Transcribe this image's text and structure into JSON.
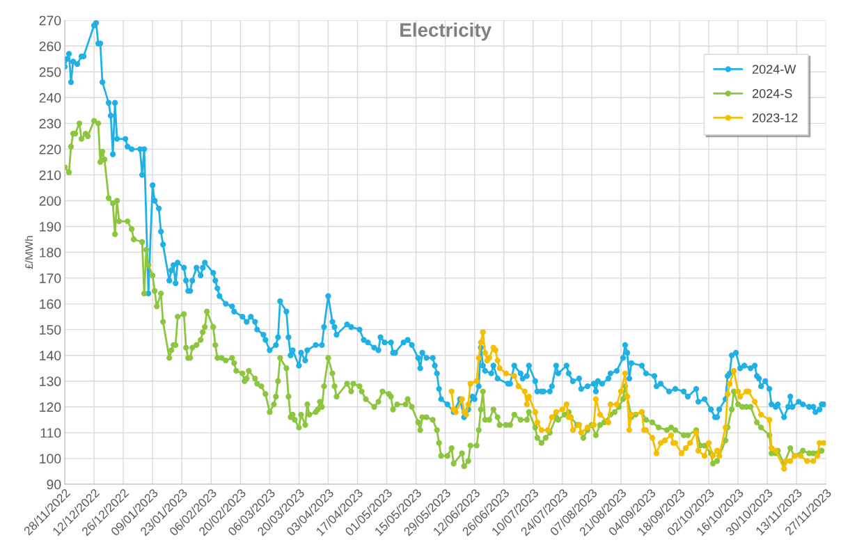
{
  "chart_data": {
    "type": "line",
    "title": "Electricity",
    "ylabel": "£/MWh",
    "xlim": [
      "2022-11-28",
      "2023-11-27"
    ],
    "ylim": [
      90,
      270
    ],
    "yticks": [
      90,
      100,
      110,
      120,
      130,
      140,
      150,
      160,
      170,
      180,
      190,
      200,
      210,
      220,
      230,
      240,
      250,
      260,
      270
    ],
    "xticks": [
      {
        "value": "2022-11-28",
        "label": "28/11/2022"
      },
      {
        "value": "2022-12-12",
        "label": "12/12/2022"
      },
      {
        "value": "2022-12-26",
        "label": "26/12/2022"
      },
      {
        "value": "2023-01-09",
        "label": "09/01/2023"
      },
      {
        "value": "2023-01-23",
        "label": "23/01/2023"
      },
      {
        "value": "2023-02-06",
        "label": "06/02/2023"
      },
      {
        "value": "2023-02-20",
        "label": "20/02/2023"
      },
      {
        "value": "2023-03-06",
        "label": "06/03/2023"
      },
      {
        "value": "2023-03-20",
        "label": "20/03/2023"
      },
      {
        "value": "2023-04-03",
        "label": "03/04/2023"
      },
      {
        "value": "2023-04-17",
        "label": "17/04/2023"
      },
      {
        "value": "2023-05-01",
        "label": "01/05/2023"
      },
      {
        "value": "2023-05-15",
        "label": "15/05/2023"
      },
      {
        "value": "2023-05-29",
        "label": "29/05/2023"
      },
      {
        "value": "2023-06-12",
        "label": "12/06/2023"
      },
      {
        "value": "2023-06-26",
        "label": "26/06/2023"
      },
      {
        "value": "2023-07-10",
        "label": "10/07/2023"
      },
      {
        "value": "2023-07-24",
        "label": "24/07/2023"
      },
      {
        "value": "2023-08-07",
        "label": "07/08/2023"
      },
      {
        "value": "2023-08-21",
        "label": "21/08/2023"
      },
      {
        "value": "2023-09-04",
        "label": "04/09/2023"
      },
      {
        "value": "2023-09-18",
        "label": "18/09/2023"
      },
      {
        "value": "2023-10-02",
        "label": "02/10/2023"
      },
      {
        "value": "2023-10-16",
        "label": "16/10/2023"
      },
      {
        "value": "2023-10-30",
        "label": "30/10/2023"
      },
      {
        "value": "2023-11-13",
        "label": "13/11/2023"
      },
      {
        "value": "2023-11-27",
        "label": "27/11/2023"
      }
    ],
    "grid": true,
    "legend": "top right",
    "marker": "circle",
    "line_style": "solid",
    "series": [
      {
        "name": "2024-W",
        "color": "#1fb1e6",
        "x": [
          "2022-11-28",
          "2022-11-29",
          "2022-11-30",
          "2022-12-01",
          "2022-12-02",
          "2022-12-04",
          "2022-12-06",
          "2022-12-07",
          "2022-12-12",
          "2022-12-13",
          "2022-12-14",
          "2022-12-15",
          "2022-12-16",
          "2022-12-19",
          "2022-12-20",
          "2022-12-21",
          "2022-12-22",
          "2022-12-23",
          "2022-12-27",
          "2022-12-28",
          "2022-12-30",
          "2023-01-03",
          "2023-01-04",
          "2023-01-05",
          "2023-01-07",
          "2023-01-09",
          "2023-01-10",
          "2023-01-12",
          "2023-01-13",
          "2023-01-14",
          "2023-01-17",
          "2023-01-18",
          "2023-01-19",
          "2023-01-20",
          "2023-01-21",
          "2023-01-24",
          "2023-01-25",
          "2023-01-26",
          "2023-01-27",
          "2023-01-28",
          "2023-01-30",
          "2023-02-01",
          "2023-02-02",
          "2023-02-03",
          "2023-02-07",
          "2023-02-08",
          "2023-02-09",
          "2023-02-10",
          "2023-02-13",
          "2023-02-16",
          "2023-02-17",
          "2023-02-21",
          "2023-02-23",
          "2023-02-25",
          "2023-02-27",
          "2023-02-28",
          "2023-03-03",
          "2023-03-04",
          "2023-03-06",
          "2023-03-09",
          "2023-03-10",
          "2023-03-11",
          "2023-03-14",
          "2023-03-15",
          "2023-03-16",
          "2023-03-17",
          "2023-03-20",
          "2023-03-21",
          "2023-03-23",
          "2023-03-24",
          "2023-03-28",
          "2023-03-31",
          "2023-04-01",
          "2023-04-03",
          "2023-04-05",
          "2023-04-06",
          "2023-04-07",
          "2023-04-12",
          "2023-04-14",
          "2023-04-18",
          "2023-04-20",
          "2023-04-22",
          "2023-04-25",
          "2023-04-27",
          "2023-04-28",
          "2023-04-30",
          "2023-05-03",
          "2023-05-04",
          "2023-05-05",
          "2023-05-09",
          "2023-05-11",
          "2023-05-13",
          "2023-05-16",
          "2023-05-17",
          "2023-05-18",
          "2023-05-20",
          "2023-05-23",
          "2023-05-24",
          "2023-05-25",
          "2023-05-26",
          "2023-05-27",
          "2023-05-30",
          "2023-06-02",
          "2023-06-05",
          "2023-06-07",
          "2023-06-09",
          "2023-06-11",
          "2023-06-12",
          "2023-06-14",
          "2023-06-15",
          "2023-06-16",
          "2023-06-17",
          "2023-06-20",
          "2023-06-21",
          "2023-06-23",
          "2023-06-28",
          "2023-06-29",
          "2023-07-01",
          "2023-07-04",
          "2023-07-05",
          "2023-07-07",
          "2023-07-08",
          "2023-07-11",
          "2023-07-12",
          "2023-07-14",
          "2023-07-15",
          "2023-07-18",
          "2023-07-19",
          "2023-07-21",
          "2023-07-22",
          "2023-07-26",
          "2023-07-27",
          "2023-07-29",
          "2023-08-01",
          "2023-08-02",
          "2023-08-05",
          "2023-08-08",
          "2023-08-09",
          "2023-08-10",
          "2023-08-12",
          "2023-08-15",
          "2023-08-16",
          "2023-08-19",
          "2023-08-22",
          "2023-08-23",
          "2023-08-24",
          "2023-08-25",
          "2023-08-26",
          "2023-08-31",
          "2023-09-02",
          "2023-09-06",
          "2023-09-07",
          "2023-09-09",
          "2023-09-13",
          "2023-09-16",
          "2023-09-20",
          "2023-09-22",
          "2023-09-26",
          "2023-09-27",
          "2023-09-30",
          "2023-10-03",
          "2023-10-05",
          "2023-10-06",
          "2023-10-07",
          "2023-10-10",
          "2023-10-11",
          "2023-10-12",
          "2023-10-13",
          "2023-10-15",
          "2023-10-17",
          "2023-10-19",
          "2023-10-22",
          "2023-10-24",
          "2023-10-25",
          "2023-10-26",
          "2023-10-27",
          "2023-10-29",
          "2023-10-31",
          "2023-11-01",
          "2023-11-03",
          "2023-11-04",
          "2023-11-07",
          "2023-11-09",
          "2023-11-10",
          "2023-11-11",
          "2023-11-14",
          "2023-11-16",
          "2023-11-19",
          "2023-11-21",
          "2023-11-22",
          "2023-11-24",
          "2023-11-25",
          "2023-11-26"
        ],
        "values": [
          252,
          255,
          257,
          246,
          254,
          253,
          256,
          256,
          268,
          269,
          261,
          261,
          246,
          238,
          233,
          218,
          238,
          224,
          224,
          221,
          220,
          220,
          210,
          220,
          164,
          206,
          200,
          197,
          188,
          183,
          169,
          173,
          175,
          168,
          176,
          174,
          169,
          165,
          165,
          169,
          174,
          171,
          174,
          176,
          172,
          169,
          166,
          163,
          160,
          159,
          157,
          155,
          153,
          155,
          153,
          150,
          148,
          146,
          142,
          144,
          147,
          161,
          157,
          147,
          140,
          142,
          136,
          141,
          138,
          142,
          144,
          144,
          151,
          163,
          153,
          151,
          148,
          152,
          151,
          150,
          146,
          145,
          143,
          142,
          147,
          145,
          145,
          141,
          141,
          145,
          146,
          144,
          139,
          135,
          141,
          139,
          139,
          136,
          133,
          127,
          123,
          121,
          118,
          123,
          116,
          119,
          124,
          123,
          128,
          143,
          136,
          134,
          133,
          136,
          131,
          129,
          129,
          136,
          133,
          131,
          132,
          136,
          130,
          126,
          126,
          126,
          126,
          128,
          136,
          133,
          136,
          133,
          130,
          131,
          127,
          128,
          129,
          126,
          130,
          129,
          131,
          133,
          134,
          139,
          144,
          141,
          131,
          137,
          136,
          133,
          132,
          128,
          129,
          126,
          127,
          126,
          124,
          127,
          122,
          123,
          119,
          116,
          116,
          119,
          123,
          132,
          133,
          140,
          141,
          135,
          136,
          135,
          136,
          132,
          131,
          128,
          130,
          127,
          121,
          120,
          121,
          116,
          120,
          124,
          120,
          122,
          121,
          120,
          120,
          118,
          119,
          121,
          121
        ]
      },
      {
        "name": "2024-S",
        "color": "#8cc63f",
        "x": [
          "2022-11-28",
          "2022-11-30",
          "2022-12-01",
          "2022-12-02",
          "2022-12-03",
          "2022-12-05",
          "2022-12-06",
          "2022-12-08",
          "2022-12-09",
          "2022-12-12",
          "2022-12-14",
          "2022-12-15",
          "2022-12-16",
          "2022-12-17",
          "2022-12-19",
          "2022-12-21",
          "2022-12-22",
          "2022-12-23",
          "2022-12-24",
          "2022-12-28",
          "2022-12-30",
          "2022-12-31",
          "2023-01-04",
          "2023-01-05",
          "2023-01-06",
          "2023-01-07",
          "2023-01-09",
          "2023-01-10",
          "2023-01-11",
          "2023-01-13",
          "2023-01-14",
          "2023-01-17",
          "2023-01-18",
          "2023-01-19",
          "2023-01-20",
          "2023-01-21",
          "2023-01-24",
          "2023-01-25",
          "2023-01-26",
          "2023-01-27",
          "2023-01-28",
          "2023-01-30",
          "2023-02-01",
          "2023-02-02",
          "2023-02-03",
          "2023-02-04",
          "2023-02-07",
          "2023-02-08",
          "2023-02-09",
          "2023-02-11",
          "2023-02-13",
          "2023-02-16",
          "2023-02-17",
          "2023-02-18",
          "2023-02-21",
          "2023-02-22",
          "2023-02-23",
          "2023-02-24",
          "2023-02-27",
          "2023-02-28",
          "2023-03-02",
          "2023-03-04",
          "2023-03-06",
          "2023-03-08",
          "2023-03-09",
          "2023-03-10",
          "2023-03-11",
          "2023-03-14",
          "2023-03-15",
          "2023-03-16",
          "2023-03-17",
          "2023-03-18",
          "2023-03-20",
          "2023-03-21",
          "2023-03-23",
          "2023-03-24",
          "2023-03-25",
          "2023-03-28",
          "2023-03-29",
          "2023-03-30",
          "2023-03-31",
          "2023-04-01",
          "2023-04-03",
          "2023-04-05",
          "2023-04-06",
          "2023-04-07",
          "2023-04-12",
          "2023-04-14",
          "2023-04-15",
          "2023-04-18",
          "2023-04-19",
          "2023-04-21",
          "2023-04-25",
          "2023-04-27",
          "2023-04-29",
          "2023-05-02",
          "2023-05-03",
          "2023-05-04",
          "2023-05-06",
          "2023-05-10",
          "2023-05-11",
          "2023-05-13",
          "2023-05-16",
          "2023-05-17",
          "2023-05-18",
          "2023-05-20",
          "2023-05-23",
          "2023-05-25",
          "2023-05-26",
          "2023-05-27",
          "2023-05-30",
          "2023-06-01",
          "2023-06-02",
          "2023-06-06",
          "2023-06-07",
          "2023-06-09",
          "2023-06-10",
          "2023-06-13",
          "2023-06-14",
          "2023-06-15",
          "2023-06-16",
          "2023-06-17",
          "2023-06-19",
          "2023-06-21",
          "2023-06-23",
          "2023-06-24",
          "2023-06-27",
          "2023-06-29",
          "2023-07-01",
          "2023-07-04",
          "2023-07-07",
          "2023-07-08",
          "2023-07-11",
          "2023-07-12",
          "2023-07-14",
          "2023-07-16",
          "2023-07-18",
          "2023-07-21",
          "2023-07-22",
          "2023-07-25",
          "2023-07-27",
          "2023-07-28",
          "2023-07-31",
          "2023-08-01",
          "2023-08-03",
          "2023-08-05",
          "2023-08-07",
          "2023-08-09",
          "2023-08-11",
          "2023-08-13",
          "2023-08-16",
          "2023-08-18",
          "2023-08-20",
          "2023-08-22",
          "2023-08-23",
          "2023-08-24",
          "2023-08-26",
          "2023-08-28",
          "2023-08-31",
          "2023-09-02",
          "2023-09-05",
          "2023-09-08",
          "2023-09-12",
          "2023-09-14",
          "2023-09-16",
          "2023-09-20",
          "2023-09-22",
          "2023-09-26",
          "2023-09-28",
          "2023-09-30",
          "2023-10-03",
          "2023-10-04",
          "2023-10-06",
          "2023-10-07",
          "2023-10-10",
          "2023-10-11",
          "2023-10-13",
          "2023-10-14",
          "2023-10-16",
          "2023-10-18",
          "2023-10-20",
          "2023-10-22",
          "2023-10-25",
          "2023-10-27",
          "2023-10-31",
          "2023-11-01",
          "2023-11-03",
          "2023-11-04",
          "2023-11-07",
          "2023-11-10",
          "2023-11-12",
          "2023-11-16",
          "2023-11-19",
          "2023-11-21",
          "2023-11-23",
          "2023-11-25"
        ],
        "values": [
          213,
          211,
          221,
          226,
          226,
          230,
          224,
          226,
          225,
          231,
          230,
          215,
          219,
          216,
          201,
          199,
          187,
          200,
          192,
          192,
          189,
          185,
          184,
          164,
          181,
          175,
          171,
          165,
          159,
          164,
          153,
          139,
          142,
          144,
          144,
          155,
          156,
          143,
          139,
          139,
          143,
          144,
          146,
          149,
          151,
          157,
          151,
          144,
          139,
          139,
          138,
          139,
          137,
          134,
          133,
          130,
          131,
          134,
          131,
          129,
          128,
          125,
          118,
          121,
          124,
          130,
          139,
          135,
          124,
          116,
          117,
          115,
          112,
          117,
          113,
          121,
          117,
          118,
          119,
          122,
          120,
          128,
          139,
          133,
          128,
          124,
          129,
          126,
          129,
          128,
          126,
          123,
          120,
          122,
          126,
          125,
          124,
          119,
          121,
          121,
          123,
          120,
          114,
          111,
          116,
          116,
          115,
          111,
          106,
          101,
          101,
          104,
          98,
          102,
          97,
          99,
          105,
          105,
          111,
          119,
          126,
          115,
          115,
          119,
          116,
          113,
          113,
          113,
          117,
          115,
          115,
          118,
          112,
          108,
          106,
          108,
          110,
          116,
          115,
          117,
          118,
          116,
          113,
          113,
          108,
          111,
          113,
          109,
          113,
          114,
          117,
          118,
          120,
          123,
          128,
          124,
          116,
          117,
          118,
          115,
          114,
          112,
          111,
          112,
          111,
          109,
          109,
          111,
          105,
          105,
          102,
          98,
          99,
          101,
          107,
          112,
          119,
          126,
          121,
          120,
          120,
          120,
          114,
          112,
          109,
          102,
          102,
          103,
          98,
          104,
          101,
          103,
          102,
          102,
          102,
          103
        ]
      },
      {
        "name": "2023-12",
        "color": "#f5bf00",
        "x": [
          "2023-06-01",
          "2023-06-02",
          "2023-06-03",
          "2023-06-06",
          "2023-06-07",
          "2023-06-08",
          "2023-06-09",
          "2023-06-10",
          "2023-06-13",
          "2023-06-14",
          "2023-06-15",
          "2023-06-16",
          "2023-06-17",
          "2023-06-18",
          "2023-06-19",
          "2023-06-21",
          "2023-06-22",
          "2023-06-23",
          "2023-06-24",
          "2023-06-27",
          "2023-07-01",
          "2023-07-03",
          "2023-07-06",
          "2023-07-07",
          "2023-07-08",
          "2023-07-11",
          "2023-07-12",
          "2023-07-14",
          "2023-07-17",
          "2023-07-19",
          "2023-07-21",
          "2023-07-24",
          "2023-07-26",
          "2023-07-27",
          "2023-07-28",
          "2023-07-29",
          "2023-08-01",
          "2023-08-02",
          "2023-08-05",
          "2023-08-08",
          "2023-08-09",
          "2023-08-11",
          "2023-08-15",
          "2023-08-16",
          "2023-08-19",
          "2023-08-21",
          "2023-08-23",
          "2023-08-24",
          "2023-08-25",
          "2023-08-26",
          "2023-08-31",
          "2023-09-01",
          "2023-09-02",
          "2023-09-05",
          "2023-09-07",
          "2023-09-09",
          "2023-09-11",
          "2023-09-14",
          "2023-09-15",
          "2023-09-16",
          "2023-09-19",
          "2023-09-21",
          "2023-09-23",
          "2023-09-26",
          "2023-09-27",
          "2023-09-30",
          "2023-10-02",
          "2023-10-04",
          "2023-10-06",
          "2023-10-07",
          "2023-10-10",
          "2023-10-11",
          "2023-10-12",
          "2023-10-14",
          "2023-10-16",
          "2023-10-17",
          "2023-10-20",
          "2023-10-21",
          "2023-10-24",
          "2023-10-27",
          "2023-10-31",
          "2023-11-01",
          "2023-11-03",
          "2023-11-07",
          "2023-11-08",
          "2023-11-10",
          "2023-11-12",
          "2023-11-15",
          "2023-11-18",
          "2023-11-21",
          "2023-11-23",
          "2023-11-24",
          "2023-11-26"
        ],
        "values": [
          126,
          119,
          118,
          123,
          118,
          117,
          121,
          129,
          130,
          139,
          145,
          149,
          141,
          138,
          139,
          143,
          142,
          138,
          135,
          133,
          132,
          128,
          126,
          121,
          124,
          118,
          114,
          111,
          111,
          116,
          118,
          119,
          121,
          116,
          116,
          111,
          113,
          110,
          112,
          113,
          123,
          117,
          114,
          121,
          121,
          126,
          133,
          124,
          111,
          117,
          118,
          111,
          111,
          108,
          102,
          106,
          107,
          109,
          106,
          106,
          102,
          104,
          106,
          110,
          103,
          101,
          106,
          101,
          103,
          101,
          112,
          125,
          129,
          134,
          126,
          124,
          126,
          126,
          122,
          117,
          115,
          104,
          103,
          96,
          99,
          99,
          101,
          101,
          99,
          99,
          101,
          106,
          106
        ]
      }
    ]
  }
}
